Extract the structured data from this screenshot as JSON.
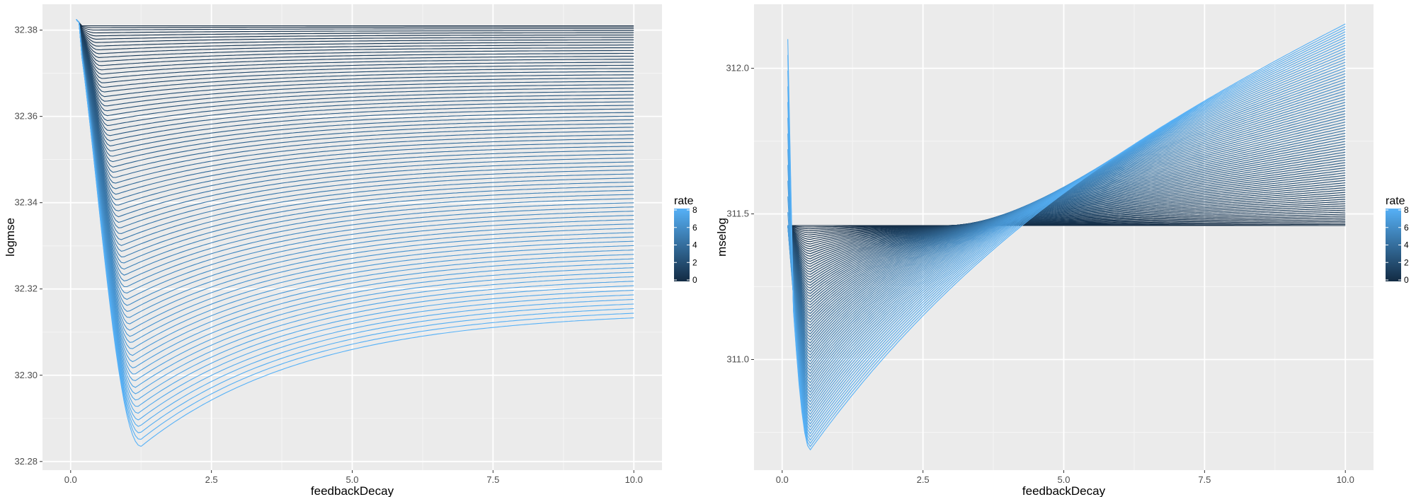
{
  "colors": {
    "panel": "#ebebeb",
    "grid_major": "#ffffff",
    "grid_minor": "#f5f5f5",
    "rate_low": "#132b43",
    "rate_high": "#56b1f7"
  },
  "chart_data": [
    {
      "type": "line",
      "xlabel": "feedbackDecay",
      "ylabel": "logmse",
      "xlim": [
        -0.5,
        10.5
      ],
      "ylim": [
        32.278,
        32.386
      ],
      "x_ticks": [
        "0.0",
        "2.5",
        "5.0",
        "7.5",
        "10.0"
      ],
      "y_ticks": [
        "32.28",
        "32.30",
        "32.32",
        "32.34",
        "32.36",
        "32.38"
      ],
      "x_range": [
        0.1,
        10.0
      ],
      "color_by": "rate",
      "rate_range": [
        0,
        8
      ],
      "n_series": 80,
      "series_shape": "each rate is one line: starts near 32.381 at feedbackDecay 0.1, dips to a minimum then recovers; higher rate gives lower curve",
      "baseline": 32.381,
      "lowest_curve_min": {
        "x": 1.25,
        "y": 32.2835
      },
      "lowest_curve_end": {
        "x": 10.0,
        "y": 32.315
      },
      "start_spike": {
        "x": 0.1,
        "y": 32.3825
      },
      "legend": {
        "title": "rate",
        "ticks": [
          "8",
          "6",
          "4",
          "2",
          "0"
        ],
        "placement": "right"
      }
    },
    {
      "type": "line",
      "xlabel": "feedbackDecay",
      "ylabel": "mselog",
      "xlim": [
        -0.5,
        10.5
      ],
      "ylim": [
        310.62,
        312.22
      ],
      "x_ticks": [
        "0.0",
        "2.5",
        "5.0",
        "7.5",
        "10.0"
      ],
      "y_ticks": [
        "311.0",
        "311.5",
        "312.0"
      ],
      "x_range": [
        0.1,
        10.0
      ],
      "color_by": "rate",
      "rate_range": [
        0,
        8
      ],
      "n_series": 80,
      "series_shape": "each rate is one line: drops from about 311.46 to a minimum near feedbackDecay 0.5, then rises; higher rate rises further by 10.0",
      "baseline": 311.46,
      "lowest_curve_min": {
        "x": 0.5,
        "y": 310.69
      },
      "highest_curve_end": {
        "x": 10.0,
        "y": 312.18
      },
      "start_spike": {
        "x": 0.12,
        "y": 312.1
      },
      "legend": {
        "title": "rate",
        "ticks": [
          "8",
          "6",
          "4",
          "2",
          "0"
        ],
        "placement": "right"
      }
    }
  ]
}
